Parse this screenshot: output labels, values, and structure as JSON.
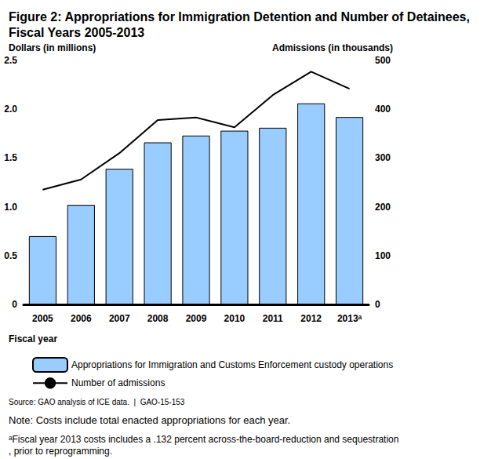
{
  "chart_data": {
    "type": "bar",
    "title": "Figure 2: Appropriations for Immigration Detention and Number of Detainees, Fiscal Years 2005-2013",
    "xlabel": "Fiscal year",
    "ylabel": "Dollars (in millions)",
    "y2label": "Admissions (in thousands)",
    "categories": [
      "2005",
      "2006",
      "2007",
      "2008",
      "2009",
      "2010",
      "2011",
      "2012",
      "2013ᵃ"
    ],
    "series": [
      {
        "name": "Appropriations for Immigration and Customs Enforcement custody operations",
        "type": "bar",
        "color": "#99ccff",
        "values": [
          0.7,
          1.02,
          1.39,
          1.66,
          1.73,
          1.78,
          1.81,
          2.06,
          1.92
        ]
      },
      {
        "name": "Number of admissions",
        "type": "line",
        "color": "#000000",
        "marker": "none",
        "line_style": "solid",
        "axis": "y2",
        "values": [
          235,
          256,
          310,
          378,
          383,
          363,
          429,
          477,
          442
        ]
      }
    ],
    "ylim": [
      0,
      2.5
    ],
    "yticks": [
      0,
      0.5,
      {
        "value": 1,
        "label": "1.0"
      },
      1.5,
      {
        "value": 2,
        "label": "2.0"
      },
      2.5
    ],
    "y2lim": [
      0,
      500
    ],
    "y2ticks": [
      0,
      100,
      200,
      300,
      400,
      500
    ],
    "grid": false,
    "legend": "bottom",
    "source": "Source: GAO analysis of ICE data.  |  GAO-15-153",
    "note": "Note: Costs include total enacted appropriations for each year.",
    "footnote": "ᵃFiscal year 2013 costs includes a .132 percent across-the-board-reduction and sequestration, prior to reprogramming."
  }
}
